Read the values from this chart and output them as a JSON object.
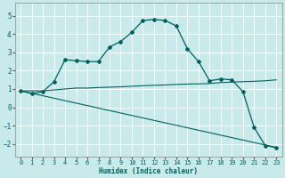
{
  "xlabel": "Humidex (Indice chaleur)",
  "ylabel": "",
  "background_color": "#c8eaea",
  "grid_color": "#ffffff",
  "line_color": "#006060",
  "xlim": [
    -0.5,
    23.5
  ],
  "ylim": [
    -2.7,
    5.7
  ],
  "yticks": [
    -2,
    -1,
    0,
    1,
    2,
    3,
    4,
    5
  ],
  "xticks": [
    0,
    1,
    2,
    3,
    4,
    5,
    6,
    7,
    8,
    9,
    10,
    11,
    12,
    13,
    14,
    15,
    16,
    17,
    18,
    19,
    20,
    21,
    22,
    23
  ],
  "series1_x": [
    0,
    1,
    2,
    3,
    4,
    5,
    6,
    7,
    8,
    9,
    10,
    11,
    12,
    13,
    14,
    15,
    16,
    17,
    18,
    19,
    20,
    21,
    22,
    23
  ],
  "series1_y": [
    0.9,
    0.75,
    0.85,
    1.4,
    2.6,
    2.55,
    2.5,
    2.5,
    3.3,
    3.6,
    4.1,
    4.75,
    4.8,
    4.75,
    4.45,
    3.2,
    2.5,
    1.45,
    1.55,
    1.5,
    0.85,
    -1.1,
    -2.1,
    -2.2
  ],
  "series2_x": [
    0,
    23
  ],
  "series2_y": [
    0.9,
    -2.2
  ],
  "series3_x": [
    0,
    1,
    2,
    3,
    4,
    5,
    6,
    7,
    8,
    9,
    10,
    11,
    12,
    13,
    14,
    15,
    16,
    17,
    18,
    19,
    20,
    21,
    22,
    23
  ],
  "series3_y": [
    0.9,
    0.9,
    0.9,
    0.95,
    1.0,
    1.05,
    1.05,
    1.08,
    1.1,
    1.12,
    1.15,
    1.18,
    1.2,
    1.22,
    1.25,
    1.27,
    1.28,
    1.3,
    1.35,
    1.38,
    1.4,
    1.42,
    1.45,
    1.5
  ],
  "xlabel_fontsize": 5.5,
  "tick_fontsize": 5.0
}
